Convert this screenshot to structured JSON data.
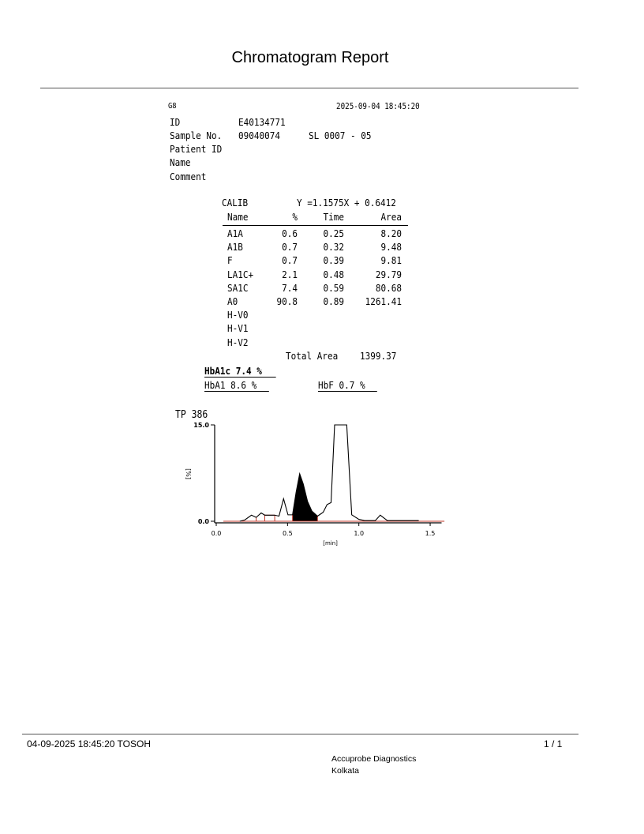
{
  "report_title": "Chromatogram Report",
  "header": {
    "instrument": "G8",
    "datetime": "2025-09-04 18:45:20",
    "id_label": "ID",
    "id_value": "E40134771",
    "sample_label": "Sample No.",
    "sample_value": "09040074",
    "sample_position": "SL 0007 - 05",
    "patient_id_label": "Patient ID",
    "name_label": "Name",
    "comment_label": "Comment"
  },
  "calib": {
    "label": "CALIB",
    "equation": "Y =1.1575X + 0.6412"
  },
  "peak_table": {
    "columns": [
      "Name",
      "%",
      "Time",
      "Area"
    ],
    "rows": [
      [
        "A1A",
        "0.6",
        "0.25",
        "8.20"
      ],
      [
        "A1B",
        "0.7",
        "0.32",
        "9.48"
      ],
      [
        "F",
        "0.7",
        "0.39",
        "9.81"
      ],
      [
        "LA1C+",
        "2.1",
        "0.48",
        "29.79"
      ],
      [
        "SA1C",
        "7.4",
        "0.59",
        "80.68"
      ],
      [
        "A0",
        "90.8",
        "0.89",
        "1261.41"
      ],
      [
        "H-V0",
        "",
        "",
        ""
      ],
      [
        "H-V1",
        "",
        "",
        ""
      ],
      [
        "H-V2",
        "",
        "",
        ""
      ]
    ],
    "total_label": "Total Area",
    "total_value": "1399.37"
  },
  "results": {
    "hba1c": "HbA1c 7.4 %",
    "hba1": "HbA1 8.6 %",
    "hbf": "HbF 0.7 %"
  },
  "chart_data": {
    "type": "line",
    "title": "TP  386",
    "xlabel": "[min]",
    "ylabel": "[%]",
    "xlim": [
      0.0,
      1.6
    ],
    "ylim": [
      0.0,
      15.0
    ],
    "x_ticks": [
      "0.0",
      "0.5",
      "1.0",
      "1.5"
    ],
    "y_ticks": [
      "0.0",
      "15.0"
    ],
    "series": [
      {
        "x": [
          0.165,
          0.2,
          0.247,
          0.28,
          0.315,
          0.34,
          0.41,
          0.44,
          0.472,
          0.503,
          0.535,
          0.56,
          0.585,
          0.61,
          0.64,
          0.67,
          0.71,
          0.75,
          0.777,
          0.805,
          0.83,
          0.915,
          0.95,
          1.0,
          1.04,
          1.115,
          1.15,
          1.2,
          1.39,
          1.42
        ],
        "y": [
          0.0,
          0.2,
          0.95,
          0.6,
          1.3,
          0.95,
          0.95,
          0.8,
          3.5,
          1.0,
          1.0,
          4.5,
          7.4,
          5.8,
          3.1,
          1.6,
          0.8,
          1.4,
          2.6,
          2.9,
          15.0,
          15.0,
          1.0,
          0.3,
          0.1,
          0.1,
          0.95,
          0.1,
          0.1,
          0.1
        ]
      }
    ],
    "filled_peak": {
      "name": "SA1C",
      "x_range": [
        0.535,
        0.71
      ]
    },
    "baseline_color": "#c0392b"
  },
  "footer": {
    "left": "04-09-2025 18:45:20  TOSOH",
    "page": "1 / 1",
    "lab_name": "Accuprobe Diagnostics",
    "lab_city": "Kolkata"
  }
}
